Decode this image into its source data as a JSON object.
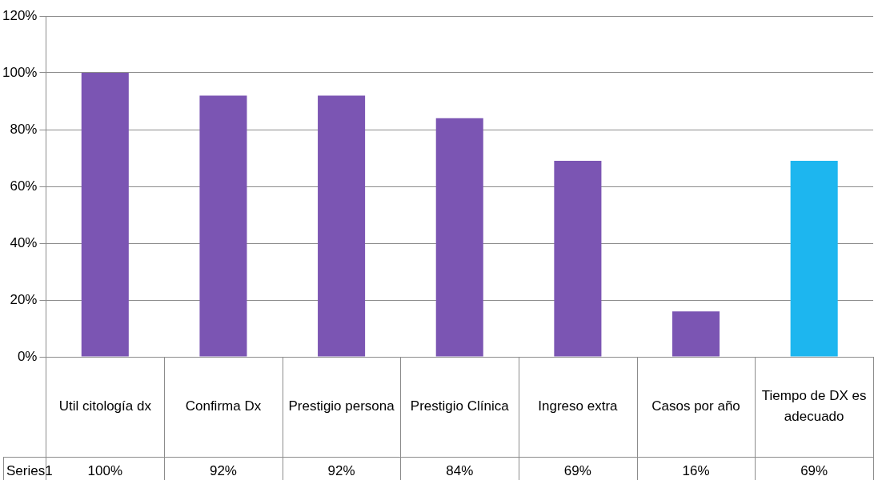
{
  "chart_data": {
    "type": "bar",
    "categories": [
      "Util citología dx",
      "Confirma Dx",
      "Prestigio persona",
      "Prestigio Clínica",
      "Ingreso extra",
      "Casos por año",
      "Tiempo de DX es adecuado"
    ],
    "series": [
      {
        "name": "Series1",
        "colors": [
          "#7b55b3",
          "#7b55b3",
          "#7b55b3",
          "#7b55b3",
          "#7b55b3",
          "#7b55b3",
          "#1db6ef"
        ],
        "values": [
          100,
          92,
          92,
          84,
          69,
          16,
          69
        ],
        "value_labels": [
          "100%",
          "92%",
          "92%",
          "84%",
          "69%",
          "16%",
          "69%"
        ]
      }
    ],
    "ylim": [
      0,
      120
    ],
    "yticks": [
      {
        "value": 0,
        "label": "0%"
      },
      {
        "value": 20,
        "label": "20%"
      },
      {
        "value": 40,
        "label": "40%"
      },
      {
        "value": 60,
        "label": "60%"
      },
      {
        "value": 80,
        "label": "80%"
      },
      {
        "value": 100,
        "label": "100%"
      },
      {
        "value": 120,
        "label": "120%"
      }
    ],
    "grid": "y"
  }
}
